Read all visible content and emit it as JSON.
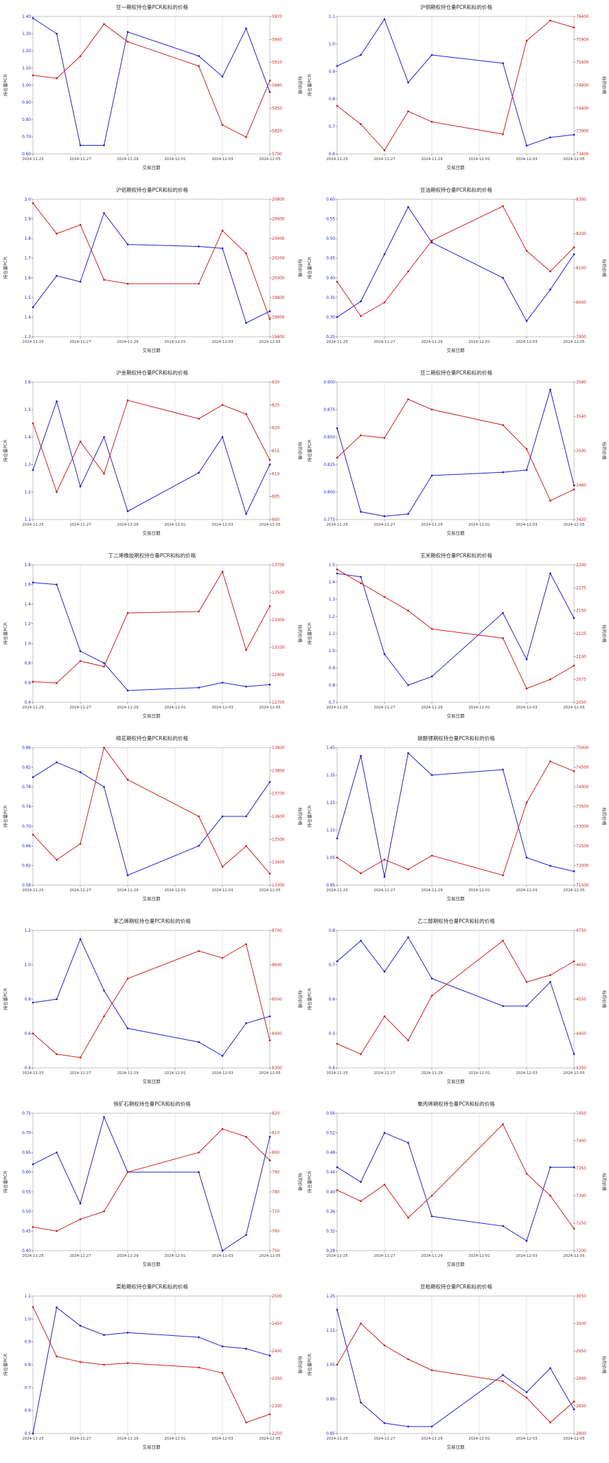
{
  "style": {
    "pcr_color": "#2222cc",
    "price_color": "#cc2222",
    "grid_color": "#dedede",
    "box_color": "#bdbdbd",
    "title_color": "#2b2b2b",
    "background": "#ffffff"
  },
  "axis_labels": {
    "left": "持仓量PCR",
    "right": "标的价格",
    "x": "交易日期"
  },
  "x_dates": [
    "2024-11-25",
    "2024-11-26",
    "2024-11-27",
    "2024-11-28",
    "2024-11-29",
    "2024-12-02",
    "2024-12-03",
    "2024-12-04",
    "2024-12-05"
  ],
  "x_day_offsets": [
    0,
    1,
    2,
    3,
    4,
    7,
    8,
    9,
    10
  ],
  "x_span_days": 10,
  "x_tick_offsets": [
    0,
    2,
    4,
    6,
    8,
    10
  ],
  "x_tick_labels": [
    "2024-11-25",
    "2024-11-27",
    "2024-11-29",
    "2024-12-01",
    "2024-12-03",
    "2024-12-05"
  ],
  "chart_data": [
    {
      "id": "douyi",
      "type": "line",
      "title": "豆一期权持仓量PCR和标的价格",
      "left_axis": {
        "min": 0.6,
        "max": 1.4,
        "step": 0.1,
        "dec": 2
      },
      "right_axis": {
        "min": 5790,
        "max": 5970,
        "step": 30,
        "dec": 0
      },
      "series": [
        {
          "name": "持仓量PCR",
          "axis": "left",
          "values": [
            1.39,
            1.3,
            0.65,
            0.65,
            1.31,
            1.17,
            1.05,
            1.33,
            0.96
          ]
        },
        {
          "name": "标的价格",
          "axis": "right",
          "values": [
            5893,
            5889,
            5918,
            5960,
            5937,
            5905,
            5828,
            5812,
            5886
          ]
        }
      ]
    },
    {
      "id": "hutong",
      "type": "line",
      "title": "沪铜期权持仓量PCR和标的价格",
      "left_axis": {
        "min": 0.6,
        "max": 1.1,
        "step": 0.1,
        "dec": 1
      },
      "right_axis": {
        "min": 73400,
        "max": 76400,
        "step": 500,
        "dec": 0
      },
      "series": [
        {
          "name": "持仓量PCR",
          "axis": "left",
          "values": [
            0.92,
            0.96,
            1.09,
            0.86,
            0.96,
            0.93,
            0.63,
            0.66,
            0.67
          ]
        },
        {
          "name": "标的价格",
          "axis": "right",
          "values": [
            74450,
            74050,
            73480,
            74330,
            74100,
            73830,
            75870,
            76310,
            76160
          ]
        }
      ]
    },
    {
      "id": "hulv",
      "type": "line",
      "title": "沪铝期权持仓量PCR和标的价格",
      "left_axis": {
        "min": 1.3,
        "max": 2.0,
        "step": 0.1,
        "dec": 1
      },
      "right_axis": {
        "min": 19400,
        "max": 20800,
        "step": 200,
        "dec": 0
      },
      "series": [
        {
          "name": "持仓量PCR",
          "axis": "left",
          "values": [
            1.45,
            1.61,
            1.58,
            1.93,
            1.77,
            1.76,
            1.75,
            1.37,
            1.43
          ]
        },
        {
          "name": "标的价格",
          "axis": "right",
          "values": [
            20760,
            20450,
            20540,
            19980,
            19940,
            19940,
            20480,
            20250,
            19580
          ]
        }
      ]
    },
    {
      "id": "douyou",
      "type": "line",
      "title": "豆油期权持仓量PCR和标的价格",
      "left_axis": {
        "min": 0.25,
        "max": 0.6,
        "step": 0.05,
        "dec": 2
      },
      "right_axis": {
        "min": 7900,
        "max": 8300,
        "step": 100,
        "dec": 0
      },
      "series": [
        {
          "name": "持仓量PCR",
          "axis": "left",
          "values": [
            0.3,
            0.34,
            0.46,
            0.58,
            0.49,
            0.4,
            0.29,
            0.37,
            0.46
          ]
        },
        {
          "name": "标的价格",
          "axis": "right",
          "values": [
            8060,
            7960,
            8000,
            8090,
            8180,
            8280,
            8150,
            8090,
            8160
          ]
        }
      ]
    },
    {
      "id": "hujin",
      "type": "line",
      "title": "沪金期权持仓量PCR和标的价格",
      "left_axis": {
        "min": 1.1,
        "max": 1.6,
        "step": 0.1,
        "dec": 1
      },
      "right_axis": {
        "min": 600,
        "max": 630,
        "step": 5,
        "dec": 0
      },
      "series": [
        {
          "name": "持仓量PCR",
          "axis": "left",
          "values": [
            1.28,
            1.53,
            1.22,
            1.4,
            1.13,
            1.27,
            1.4,
            1.12,
            1.3
          ]
        },
        {
          "name": "标的价格",
          "axis": "right",
          "values": [
            621,
            606,
            617,
            610,
            626,
            622,
            625,
            623,
            613
          ]
        }
      ]
    },
    {
      "id": "douer",
      "type": "line",
      "title": "豆二期权持仓量PCR和标的价格",
      "left_axis": {
        "min": 0.775,
        "max": 0.9,
        "step": 0.025,
        "dec": 3
      },
      "right_axis": {
        "min": 3420,
        "max": 3580,
        "step": 40,
        "dec": 0
      },
      "series": [
        {
          "name": "持仓量PCR",
          "axis": "left",
          "values": [
            0.858,
            0.782,
            0.778,
            0.78,
            0.815,
            0.818,
            0.82,
            0.893,
            0.806
          ]
        },
        {
          "name": "标的价格",
          "axis": "right",
          "values": [
            3492,
            3518,
            3515,
            3560,
            3548,
            3530,
            3502,
            3442,
            3455
          ]
        }
      ]
    },
    {
      "id": "dingerxi",
      "type": "line",
      "title": "丁二烯橡胶期权持仓量PCR和标的价格",
      "left_axis": {
        "min": 0.4,
        "max": 1.8,
        "step": 0.2,
        "dec": 1
      },
      "right_axis": {
        "min": 12700,
        "max": 13700,
        "step": 200,
        "dec": 0
      },
      "series": [
        {
          "name": "持仓量PCR",
          "axis": "left",
          "values": [
            1.62,
            1.6,
            0.92,
            0.8,
            0.52,
            0.55,
            0.6,
            0.56,
            0.58
          ]
        },
        {
          "name": "标的价格",
          "axis": "right",
          "values": [
            12850,
            12840,
            13000,
            12960,
            13350,
            13360,
            13650,
            13080,
            13400
          ]
        }
      ]
    },
    {
      "id": "yumi",
      "type": "line",
      "title": "玉米期权持仓量PCR和标的价格",
      "left_axis": {
        "min": 0.7,
        "max": 1.5,
        "step": 0.1,
        "dec": 1
      },
      "right_axis": {
        "min": 2050,
        "max": 2200,
        "step": 25,
        "dec": 0
      },
      "series": [
        {
          "name": "持仓量PCR",
          "axis": "left",
          "values": [
            1.45,
            1.43,
            0.98,
            0.8,
            0.85,
            1.22,
            0.95,
            1.45,
            1.19
          ]
        },
        {
          "name": "标的价格",
          "axis": "right",
          "values": [
            2195,
            2180,
            2165,
            2150,
            2130,
            2120,
            2065,
            2075,
            2090
          ]
        }
      ]
    },
    {
      "id": "mianhua",
      "type": "line",
      "title": "棉花期权持仓量PCR和标的价格",
      "left_axis": {
        "min": 0.58,
        "max": 0.86,
        "step": 0.04,
        "dec": 2
      },
      "right_axis": {
        "min": 13300,
        "max": 13900,
        "step": 100,
        "dec": 0
      },
      "series": [
        {
          "name": "持仓量PCR",
          "axis": "left",
          "values": [
            0.8,
            0.83,
            0.81,
            0.78,
            0.6,
            0.66,
            0.72,
            0.72,
            0.79
          ]
        },
        {
          "name": "标的价格",
          "axis": "right",
          "values": [
            13520,
            13410,
            13480,
            13900,
            13760,
            13600,
            13380,
            13470,
            13350
          ]
        }
      ]
    },
    {
      "id": "tansuanli",
      "type": "line",
      "title": "碳酸锂期权持仓量PCR和标的价格",
      "left_axis": {
        "min": 0.95,
        "max": 1.45,
        "step": 0.1,
        "dec": 2
      },
      "right_axis": {
        "min": 71500,
        "max": 75000,
        "step": 500,
        "dec": 0
      },
      "series": [
        {
          "name": "持仓量PCR",
          "axis": "left",
          "values": [
            1.12,
            1.42,
            0.98,
            1.43,
            1.35,
            1.37,
            1.05,
            1.02,
            1.0
          ]
        },
        {
          "name": "标的价格",
          "axis": "right",
          "values": [
            72200,
            71800,
            72150,
            71900,
            72250,
            71750,
            73600,
            74650,
            74400
          ]
        }
      ]
    },
    {
      "id": "benyixi",
      "type": "line",
      "title": "苯乙烯期权持仓量PCR和标的价格",
      "left_axis": {
        "min": 0.4,
        "max": 1.2,
        "step": 0.2,
        "dec": 1
      },
      "right_axis": {
        "min": 8300,
        "max": 8700,
        "step": 100,
        "dec": 0
      },
      "series": [
        {
          "name": "持仓量PCR",
          "axis": "left",
          "values": [
            0.78,
            0.8,
            1.15,
            0.85,
            0.63,
            0.55,
            0.47,
            0.66,
            0.7
          ]
        },
        {
          "name": "标的价格",
          "axis": "right",
          "values": [
            8400,
            8340,
            8330,
            8450,
            8560,
            8640,
            8620,
            8660,
            8380
          ]
        }
      ]
    },
    {
      "id": "yierchun",
      "type": "line",
      "title": "乙二醇期权持仓量PCR和标的价格",
      "left_axis": {
        "min": 0.4,
        "max": 0.8,
        "step": 0.1,
        "dec": 1
      },
      "right_axis": {
        "min": 4350,
        "max": 4750,
        "step": 100,
        "dec": 0
      },
      "series": [
        {
          "name": "持仓量PCR",
          "axis": "left",
          "values": [
            0.71,
            0.77,
            0.68,
            0.78,
            0.66,
            0.58,
            0.58,
            0.65,
            0.44
          ]
        },
        {
          "name": "标的价格",
          "axis": "right",
          "values": [
            4420,
            4390,
            4500,
            4430,
            4560,
            4720,
            4600,
            4620,
            4660
          ]
        }
      ]
    },
    {
      "id": "tiekuangshi",
      "type": "line",
      "title": "铁矿石期权持仓量PCR和标的价格",
      "left_axis": {
        "min": 0.4,
        "max": 0.75,
        "step": 0.05,
        "dec": 2
      },
      "right_axis": {
        "min": 750,
        "max": 820,
        "step": 10,
        "dec": 0
      },
      "series": [
        {
          "name": "持仓量PCR",
          "axis": "left",
          "values": [
            0.62,
            0.65,
            0.52,
            0.74,
            0.6,
            0.6,
            0.4,
            0.44,
            0.69
          ]
        },
        {
          "name": "标的价格",
          "axis": "right",
          "values": [
            762,
            760,
            766,
            770,
            790,
            800,
            812,
            808,
            796
          ]
        }
      ]
    },
    {
      "id": "jubingxi",
      "type": "line",
      "title": "聚丙烯期权持仓量PCR和标的价格",
      "left_axis": {
        "min": 0.28,
        "max": 0.56,
        "step": 0.04,
        "dec": 2
      },
      "right_axis": {
        "min": 7200,
        "max": 7450,
        "step": 50,
        "dec": 0
      },
      "series": [
        {
          "name": "持仓量PCR",
          "axis": "left",
          "values": [
            0.45,
            0.42,
            0.52,
            0.5,
            0.35,
            0.33,
            0.3,
            0.45,
            0.45
          ]
        },
        {
          "name": "标的价格",
          "axis": "right",
          "values": [
            7310,
            7290,
            7320,
            7260,
            7300,
            7430,
            7340,
            7300,
            7240
          ]
        }
      ]
    },
    {
      "id": "caipo",
      "type": "line",
      "title": "菜粕期权持仓量PCR和标的价格",
      "left_axis": {
        "min": 0.5,
        "max": 1.1,
        "step": 0.1,
        "dec": 1
      },
      "right_axis": {
        "min": 2250,
        "max": 2500,
        "step": 50,
        "dec": 0
      },
      "series": [
        {
          "name": "持仓量PCR",
          "axis": "left",
          "values": [
            0.5,
            1.05,
            0.97,
            0.93,
            0.94,
            0.92,
            0.88,
            0.87,
            0.84
          ]
        },
        {
          "name": "标的价格",
          "axis": "right",
          "values": [
            2480,
            2390,
            2380,
            2375,
            2378,
            2370,
            2360,
            2270,
            2285
          ]
        }
      ]
    },
    {
      "id": "doupo",
      "type": "line",
      "title": "豆粕期权持仓量PCR和标的价格",
      "left_axis": {
        "min": 0.85,
        "max": 1.25,
        "step": 0.1,
        "dec": 2
      },
      "right_axis": {
        "min": 2800,
        "max": 3050,
        "step": 50,
        "dec": 0
      },
      "series": [
        {
          "name": "持仓量PCR",
          "axis": "left",
          "values": [
            1.21,
            0.94,
            0.88,
            0.87,
            0.87,
            1.02,
            0.97,
            1.04,
            0.92
          ]
        },
        {
          "name": "标的价格",
          "axis": "right",
          "values": [
            2925,
            3000,
            2960,
            2935,
            2915,
            2895,
            2865,
            2820,
            2858
          ]
        }
      ]
    }
  ]
}
